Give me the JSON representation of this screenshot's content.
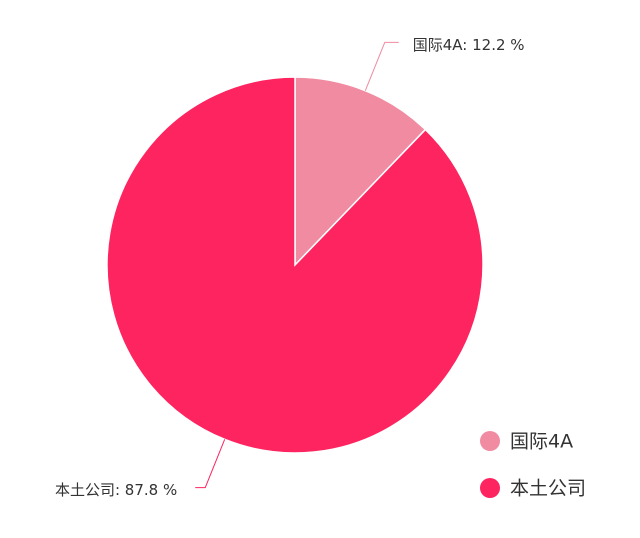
{
  "chart_data": {
    "type": "pie",
    "categories": [
      "国际4A",
      "本土公司"
    ],
    "values": [
      12.2,
      87.8
    ],
    "value_labels": [
      "国际4A: 12.2 %",
      "本土公司: 87.8 %"
    ],
    "colors": [
      "#f08ba1",
      "#fe2460"
    ],
    "legend": "bottom-right"
  }
}
